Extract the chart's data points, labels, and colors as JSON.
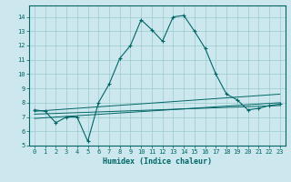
{
  "xlabel": "Humidex (Indice chaleur)",
  "bg_color": "#cce8ee",
  "line_color": "#006666",
  "grid_color": "#99cccc",
  "xlim": [
    -0.5,
    23.5
  ],
  "ylim": [
    5,
    14.8
  ],
  "yticks": [
    5,
    6,
    7,
    8,
    9,
    10,
    11,
    12,
    13,
    14
  ],
  "xticks": [
    0,
    1,
    2,
    3,
    4,
    5,
    6,
    7,
    8,
    9,
    10,
    11,
    12,
    13,
    14,
    15,
    16,
    17,
    18,
    19,
    20,
    21,
    22,
    23
  ],
  "main_line": {
    "x": [
      0,
      1,
      2,
      3,
      4,
      5,
      6,
      7,
      8,
      9,
      10,
      11,
      12,
      13,
      14,
      15,
      16,
      17,
      18,
      19,
      20,
      21,
      22,
      23
    ],
    "y": [
      7.5,
      7.4,
      6.6,
      7.0,
      7.0,
      5.3,
      8.0,
      9.3,
      11.1,
      12.0,
      13.8,
      13.1,
      12.3,
      14.0,
      14.1,
      13.0,
      11.8,
      10.0,
      8.6,
      8.2,
      7.5,
      7.6,
      7.8,
      7.9
    ]
  },
  "trend_lines": [
    {
      "x": [
        0,
        23
      ],
      "y": [
        7.4,
        8.6
      ]
    },
    {
      "x": [
        0,
        23
      ],
      "y": [
        7.2,
        7.8
      ]
    },
    {
      "x": [
        0,
        23
      ],
      "y": [
        6.9,
        8.0
      ]
    }
  ]
}
